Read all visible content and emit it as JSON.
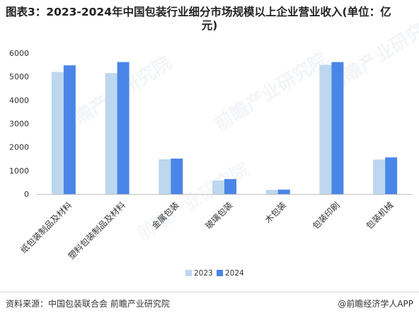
{
  "header": {
    "title_line1": "图表3：2023-2024年中国包装行业细分市场规模以上企业营业收入(单位：亿",
    "title_line2": "元)"
  },
  "footer": {
    "source": "资料来源：中国包装联合会 前瞻产业研究院",
    "brand": "@前瞻经济学人APP"
  },
  "watermark_text": "前瞻产业研究院",
  "colors": {
    "series_2023": "#bdd7ee",
    "series_2024": "#4a86e8",
    "axis": "#bfbfbf",
    "text": "#333333"
  },
  "chart_data": {
    "type": "bar",
    "categories": [
      "纸包装制品及材料",
      "塑料包装制品及材料",
      "金属包装",
      "玻璃包装",
      "木包装",
      "包装印刷",
      "包装机械"
    ],
    "series": [
      {
        "name": "2023",
        "values": [
          5200,
          5150,
          1480,
          580,
          180,
          5500,
          1470
        ]
      },
      {
        "name": "2024",
        "values": [
          5480,
          5620,
          1510,
          640,
          190,
          5620,
          1560
        ]
      }
    ],
    "yticks": [
      "0",
      "1000",
      "2000",
      "3000",
      "4000",
      "5000",
      "6000"
    ],
    "ylim": [
      0,
      6000
    ],
    "legend_position": "bottom",
    "grid": false
  }
}
